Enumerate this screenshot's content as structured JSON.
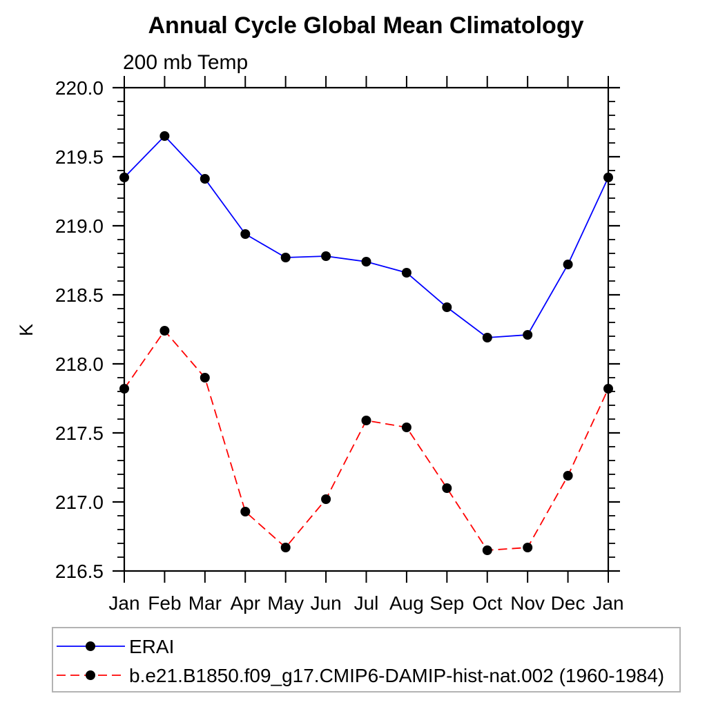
{
  "chart_data": {
    "type": "line",
    "title": "Annual Cycle Global Mean Climatology",
    "subtitle": "200 mb Temp",
    "ylabel": "K",
    "xlabel": "",
    "categories": [
      "Jan",
      "Feb",
      "Mar",
      "Apr",
      "May",
      "Jun",
      "Jul",
      "Aug",
      "Sep",
      "Oct",
      "Nov",
      "Dec",
      "Jan"
    ],
    "ylim": [
      216.5,
      220.0
    ],
    "y_major_step": 0.5,
    "y_minor_step": 0.1,
    "y_tick_labels": [
      "220.0",
      "219.5",
      "219.0",
      "218.5",
      "218.0",
      "217.5",
      "217.0",
      "216.5"
    ],
    "grid": false,
    "legend_position": "bottom-left",
    "marker": "filled-circle",
    "marker_color": "#000000",
    "axis_color": "#000000",
    "legend_border_color": "#b3b3b3",
    "series": [
      {
        "name": "ERAI",
        "color": "#0000ff",
        "line_style": "solid",
        "values": [
          219.35,
          219.65,
          219.34,
          218.94,
          218.77,
          218.78,
          218.74,
          218.66,
          218.41,
          218.19,
          218.21,
          218.72,
          219.35
        ]
      },
      {
        "name": "b.e21.B1850.f09_g17.CMIP6-DAMIP-hist-nat.002 (1960-1984)",
        "color": "#ff0000",
        "line_style": "dashed",
        "values": [
          217.82,
          218.24,
          217.9,
          216.93,
          216.67,
          217.02,
          217.59,
          217.54,
          217.1,
          216.65,
          216.67,
          217.19,
          217.82
        ]
      }
    ]
  }
}
